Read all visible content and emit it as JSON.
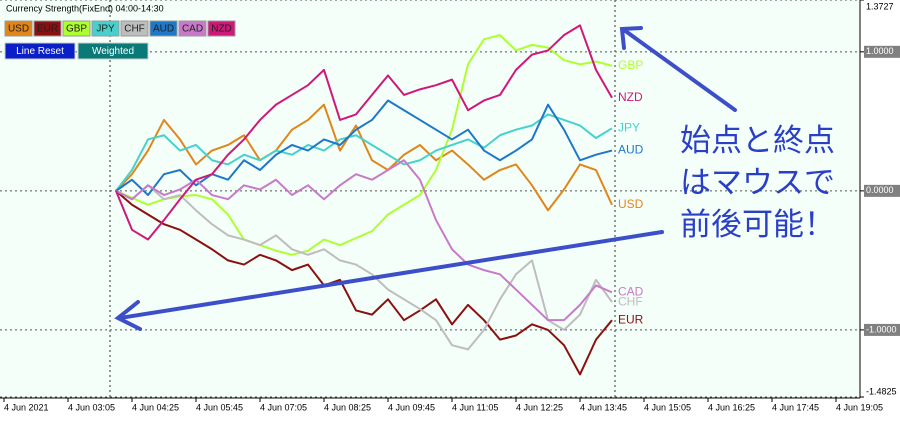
{
  "chart_data": {
    "type": "line",
    "title": "Currency Strength(FixEnd) 04:00-14:30",
    "buttons": [
      "Line Reset",
      "Weighted"
    ],
    "annotation": [
      "始点と終点",
      "はマウスで",
      "前後可能！"
    ],
    "categories": [
      "4 Jun 2021",
      null,
      null,
      null,
      "4 Jun 03:05",
      null,
      null,
      null,
      "4 Jun 04:25",
      null,
      null,
      null,
      "4 Jun 05:45",
      null,
      null,
      null,
      "4 Jun 07:05",
      null,
      null,
      null,
      "4 Jun 08:25",
      null,
      null,
      null,
      "4 Jun 09:45",
      null,
      null,
      null,
      "4 Jun 11:05",
      null,
      null,
      null,
      "4 Jun 12:25",
      null,
      null,
      null,
      "4 Jun 13:45",
      null,
      null,
      null,
      "4 Jun 15:05",
      null,
      null,
      null,
      "4 Jun 16:25",
      null,
      null,
      null,
      "4 Jun 17:45",
      null,
      null,
      null,
      "4 Jun 19:05"
    ],
    "ylim": [
      -1.4825,
      1.3727
    ],
    "yticks": [
      1.3727,
      {
        "value": 1,
        "label": "1.0000"
      },
      {
        "value": 0,
        "label": "0.0000"
      },
      {
        "value": -1,
        "label": "-1.0000"
      },
      -1.4825
    ],
    "grid": true,
    "series": [
      {
        "name": "USD",
        "color": "#e0861a",
        "values": [
          null,
          null,
          null,
          null,
          null,
          null,
          null,
          0,
          0.12,
          0.29,
          0.51,
          0.37,
          0.19,
          0.29,
          0.33,
          0.4,
          0.22,
          0.29,
          0.44,
          0.51,
          0.62,
          0.29,
          0.47,
          0.22,
          0.15,
          0.26,
          0.33,
          0.22,
          0.29,
          0.19,
          0.08,
          0.15,
          0.19,
          0.04,
          -0.14,
          0.01,
          0.19,
          0.15,
          -0.1,
          null,
          null,
          null,
          null,
          null,
          null,
          null,
          null,
          null,
          null,
          null,
          null,
          null,
          null
        ]
      },
      {
        "name": "EUR",
        "color": "#8b1010",
        "values": [
          null,
          null,
          null,
          null,
          null,
          null,
          null,
          0,
          -0.1,
          -0.17,
          -0.24,
          -0.28,
          -0.35,
          -0.42,
          -0.5,
          -0.53,
          -0.46,
          -0.5,
          -0.57,
          -0.53,
          -0.68,
          -0.64,
          -0.86,
          -0.89,
          -0.78,
          -0.93,
          -0.86,
          -0.78,
          -0.96,
          -0.82,
          -0.93,
          -1.07,
          -1.04,
          -0.96,
          -1.0,
          -1.11,
          -1.32,
          -1.07,
          -0.93,
          null,
          null,
          null,
          null,
          null,
          null,
          null,
          null,
          null,
          null,
          null,
          null,
          null,
          null
        ]
      },
      {
        "name": "GBP",
        "color": "#adff2f",
        "values": [
          null,
          null,
          null,
          null,
          null,
          null,
          null,
          0,
          -0.05,
          -0.1,
          -0.06,
          -0.04,
          -0.03,
          -0.06,
          -0.17,
          -0.35,
          -0.39,
          -0.43,
          -0.46,
          -0.43,
          -0.35,
          -0.39,
          -0.34,
          -0.29,
          -0.17,
          -0.1,
          -0.03,
          0.15,
          0.44,
          0.91,
          1.09,
          1.12,
          1.01,
          1.05,
          1.03,
          0.94,
          0.91,
          0.93,
          0.9,
          null,
          null,
          null,
          null,
          null,
          null,
          null,
          null,
          null,
          null,
          null,
          null,
          null,
          null
        ]
      },
      {
        "name": "JPY",
        "color": "#48d1cc",
        "values": [
          null,
          null,
          null,
          null,
          null,
          null,
          null,
          0,
          0.15,
          0.37,
          0.4,
          0.29,
          0.33,
          0.22,
          0.19,
          0.26,
          0.22,
          0.29,
          0.26,
          0.33,
          0.29,
          0.37,
          0.4,
          0.33,
          0.26,
          0.19,
          0.22,
          0.29,
          0.33,
          0.37,
          0.31,
          0.4,
          0.44,
          0.47,
          0.55,
          0.51,
          0.47,
          0.38,
          0.45,
          null,
          null,
          null,
          null,
          null,
          null,
          null,
          null,
          null,
          null,
          null,
          null,
          null,
          null
        ]
      },
      {
        "name": "CHF",
        "color": "#bdbdbd",
        "values": [
          null,
          null,
          null,
          null,
          null,
          null,
          null,
          0,
          -0.06,
          0.04,
          -0.06,
          -0.03,
          -0.14,
          -0.24,
          -0.32,
          -0.35,
          -0.39,
          -0.32,
          -0.42,
          -0.46,
          -0.42,
          -0.5,
          -0.53,
          -0.6,
          -0.71,
          -0.78,
          -0.85,
          -0.93,
          -1.11,
          -1.14,
          -1.0,
          -0.78,
          -0.6,
          -0.5,
          -0.93,
          -1.0,
          -0.89,
          -0.64,
          -0.8,
          null,
          null,
          null,
          null,
          null,
          null,
          null,
          null,
          null,
          null,
          null,
          null,
          null,
          null
        ]
      },
      {
        "name": "AUD",
        "color": "#1e78c8",
        "values": [
          null,
          null,
          null,
          null,
          null,
          null,
          null,
          0,
          0.08,
          -0.03,
          0.12,
          0.15,
          0.04,
          0.12,
          0.08,
          0.22,
          0.15,
          0.26,
          0.33,
          0.29,
          0.37,
          0.33,
          0.44,
          0.51,
          0.65,
          0.58,
          0.51,
          0.44,
          0.37,
          0.44,
          0.29,
          0.22,
          0.29,
          0.37,
          0.62,
          0.44,
          0.22,
          0.26,
          0.29,
          null,
          null,
          null,
          null,
          null,
          null,
          null,
          null,
          null,
          null,
          null,
          null,
          null,
          null
        ]
      },
      {
        "name": "CAD",
        "color": "#c87ac8",
        "values": [
          null,
          null,
          null,
          null,
          null,
          null,
          null,
          0,
          -0.06,
          0.04,
          -0.03,
          0.01,
          0.08,
          -0.03,
          -0.06,
          0.04,
          0.01,
          0.08,
          -0.03,
          0.04,
          -0.06,
          0.04,
          0.12,
          0.08,
          0.15,
          0.22,
          0.08,
          -0.21,
          -0.42,
          -0.53,
          -0.57,
          -0.6,
          -0.71,
          -0.82,
          -0.93,
          -0.93,
          -0.82,
          -0.68,
          -0.73,
          null,
          null,
          null,
          null,
          null,
          null,
          null,
          null,
          null,
          null,
          null,
          null,
          null,
          null
        ]
      },
      {
        "name": "NZD",
        "color": "#d0187a",
        "values": [
          null,
          null,
          null,
          null,
          null,
          null,
          null,
          0,
          -0.28,
          -0.35,
          -0.21,
          -0.06,
          0.08,
          0.12,
          0.26,
          0.37,
          0.51,
          0.62,
          0.69,
          0.76,
          0.87,
          0.51,
          0.55,
          0.69,
          0.83,
          0.69,
          0.73,
          0.76,
          0.8,
          0.58,
          0.65,
          0.69,
          0.87,
          0.98,
          1.01,
          1.12,
          1.19,
          0.87,
          0.67,
          null,
          null,
          null,
          null,
          null,
          null,
          null,
          null,
          null,
          null,
          null,
          null,
          null,
          null
        ]
      }
    ]
  }
}
